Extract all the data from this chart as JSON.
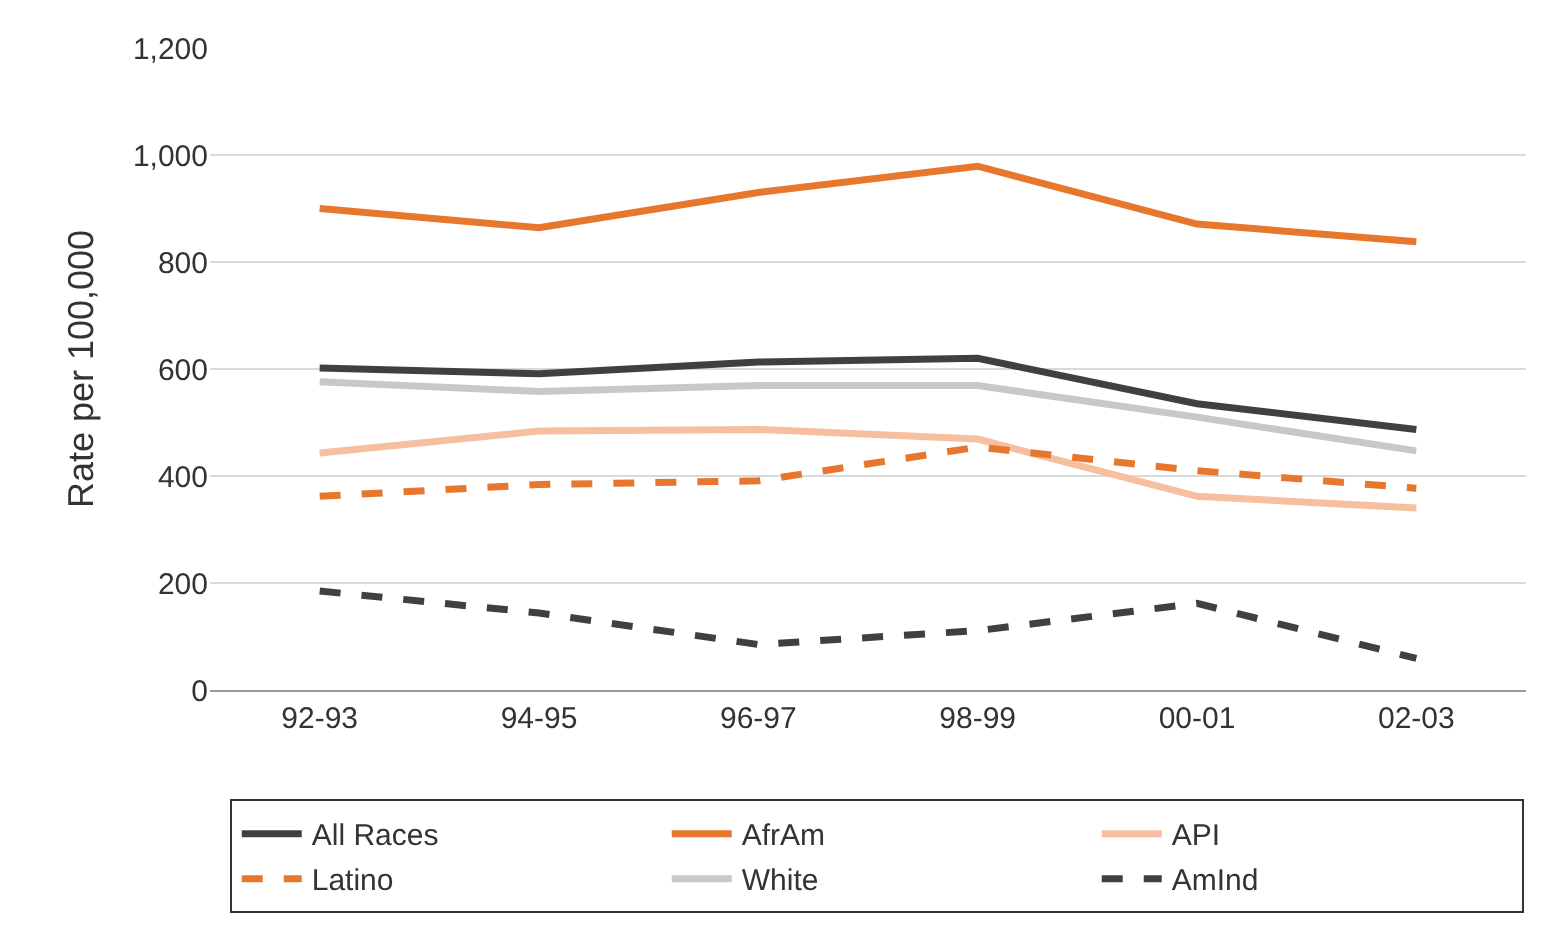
{
  "chart_data": {
    "type": "line",
    "ylabel": "Rate per 100,000",
    "categories": [
      "92-93",
      "94-95",
      "96-97",
      "98-99",
      "00-01",
      "02-03"
    ],
    "series": [
      {
        "name": "All Races",
        "color": "#404040",
        "line_style": "solid",
        "values": [
          602,
          591,
          613,
          620,
          535,
          487
        ]
      },
      {
        "name": "AfrAm",
        "color": "#e8772e",
        "line_style": "solid",
        "values": [
          900,
          864,
          930,
          979,
          871,
          838
        ]
      },
      {
        "name": "API",
        "color": "#f5bfa0",
        "line_style": "solid",
        "values": [
          443,
          484,
          487,
          469,
          362,
          340
        ]
      },
      {
        "name": "Latino",
        "color": "#e8772e",
        "line_style": "dashed",
        "values": [
          362,
          384,
          391,
          454,
          410,
          377
        ]
      },
      {
        "name": "White",
        "color": "#c8c8c8",
        "line_style": "solid",
        "values": [
          576,
          558,
          569,
          569,
          510,
          447
        ]
      },
      {
        "name": "AmInd",
        "color": "#404040",
        "line_style": "dashed",
        "values": [
          185,
          144,
          85,
          111,
          162,
          59
        ]
      }
    ],
    "ylim": [
      0,
      1200
    ],
    "yticks": [
      0,
      {
        "value": 200,
        "label": "200"
      },
      {
        "value": 400,
        "label": "400"
      },
      {
        "value": 600,
        "label": "600"
      },
      {
        "value": 800,
        "label": "800"
      },
      {
        "value": 1000,
        "label": "1,000"
      },
      {
        "value": 1200,
        "label": "1,200"
      }
    ],
    "grid": "y",
    "legend": "bottom",
    "marker": "none"
  }
}
